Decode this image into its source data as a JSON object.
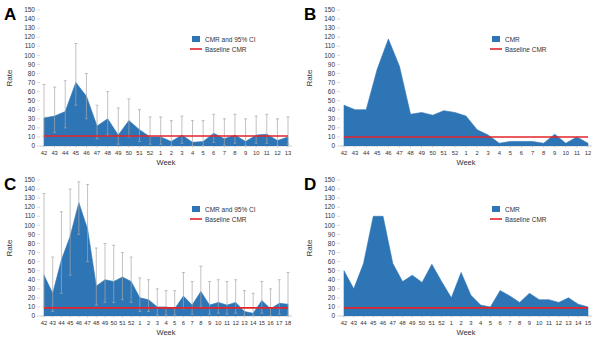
{
  "chart_data": [
    {
      "type": "area",
      "title": "A",
      "x_label": "Week",
      "y_label": "Rate",
      "categories": [
        "42",
        "43",
        "44",
        "45",
        "46",
        "47",
        "48",
        "49",
        "50",
        "51",
        "52",
        "1",
        "2",
        "3",
        "4",
        "5",
        "6",
        "7",
        "8",
        "9",
        "10",
        "11",
        "12",
        "13"
      ],
      "series": [
        {
          "name": "CMR and 95% CI",
          "color": "#2e75b6",
          "type": "area",
          "values": [
            31,
            33,
            38,
            70,
            55,
            22,
            30,
            12,
            28,
            18,
            10,
            10,
            5,
            12,
            4,
            5,
            14,
            8,
            12,
            5,
            12,
            13,
            6,
            10
          ],
          "ci_lower": [
            10,
            15,
            20,
            45,
            30,
            8,
            12,
            2,
            10,
            5,
            2,
            2,
            0,
            3,
            0,
            0,
            4,
            1,
            3,
            0,
            3,
            3,
            0,
            2
          ],
          "ci_upper": [
            68,
            65,
            72,
            113,
            80,
            45,
            60,
            42,
            52,
            40,
            32,
            32,
            28,
            33,
            28,
            28,
            35,
            30,
            35,
            30,
            33,
            35,
            30,
            32
          ]
        },
        {
          "name": "Baseline CMR",
          "color": "#e3242b",
          "type": "line",
          "values": [
            11,
            11,
            11,
            11,
            11,
            11,
            11,
            11,
            11,
            11,
            11,
            11,
            11,
            11,
            11,
            11,
            11,
            11,
            11,
            11,
            11,
            11,
            11,
            11
          ]
        }
      ],
      "ylim": [
        0,
        150
      ],
      "yticks": [
        0,
        10,
        20,
        30,
        40,
        50,
        60,
        70,
        80,
        90,
        100,
        110,
        120,
        130,
        140,
        150
      ],
      "grid": false,
      "legend": "top-right"
    },
    {
      "type": "area",
      "title": "B",
      "x_label": "Week",
      "y_label": "Rate",
      "categories": [
        "42",
        "43",
        "44",
        "45",
        "46",
        "47",
        "48",
        "49",
        "50",
        "51",
        "52",
        "1",
        "2",
        "3",
        "4",
        "5",
        "6",
        "7",
        "8",
        "9",
        "10",
        "11",
        "12"
      ],
      "series": [
        {
          "name": "CMR",
          "color": "#2e75b6",
          "type": "area",
          "values": [
            45,
            40,
            40,
            85,
            118,
            88,
            35,
            37,
            34,
            39,
            37,
            33,
            18,
            12,
            3,
            5,
            5,
            5,
            3,
            13,
            3,
            10,
            3
          ]
        },
        {
          "name": "Baseline CMR",
          "color": "#e3242b",
          "type": "line",
          "values": [
            10,
            10,
            10,
            10,
            10,
            10,
            10,
            10,
            10,
            10,
            10,
            10,
            10,
            10,
            10,
            10,
            10,
            10,
            10,
            10,
            10,
            10,
            10
          ]
        }
      ],
      "ylim": [
        0,
        150
      ],
      "yticks": [
        0,
        10,
        20,
        30,
        40,
        50,
        60,
        70,
        80,
        90,
        100,
        110,
        120,
        130,
        140,
        150
      ],
      "grid": false,
      "legend": "top-right"
    },
    {
      "type": "area",
      "title": "C",
      "x_label": "Week",
      "y_label": "Rate",
      "categories": [
        "42",
        "43",
        "44",
        "45",
        "46",
        "47",
        "48",
        "49",
        "50",
        "51",
        "52",
        "1",
        "2",
        "3",
        "4",
        "5",
        "6",
        "7",
        "8",
        "9",
        "10",
        "11",
        "12",
        "13",
        "14",
        "15",
        "16",
        "17",
        "18"
      ],
      "series": [
        {
          "name": "CMR and 95% CI",
          "color": "#2e75b6",
          "type": "area",
          "values": [
            45,
            25,
            62,
            88,
            125,
            96,
            33,
            40,
            38,
            43,
            38,
            20,
            18,
            10,
            10,
            8,
            22,
            12,
            27,
            12,
            15,
            12,
            15,
            5,
            3,
            17,
            8,
            14,
            13
          ],
          "ci_lower": [
            10,
            5,
            25,
            45,
            90,
            60,
            12,
            15,
            15,
            18,
            15,
            5,
            5,
            1,
            1,
            1,
            8,
            2,
            10,
            2,
            3,
            2,
            3,
            0,
            0,
            3,
            0,
            2,
            1
          ],
          "ci_upper": [
            135,
            65,
            115,
            140,
            148,
            145,
            75,
            80,
            78,
            70,
            65,
            42,
            40,
            30,
            28,
            28,
            48,
            38,
            55,
            38,
            40,
            38,
            40,
            28,
            25,
            38,
            30,
            40,
            48
          ]
        },
        {
          "name": "Baseline CMR",
          "color": "#e3242b",
          "type": "line",
          "values": [
            9,
            9,
            9,
            9,
            9,
            9,
            9,
            9,
            9,
            9,
            9,
            9,
            9,
            9,
            9,
            9,
            9,
            9,
            9,
            9,
            9,
            9,
            9,
            9,
            9,
            9,
            9,
            9,
            9
          ]
        }
      ],
      "ylim": [
        0,
        150
      ],
      "yticks": [
        0,
        10,
        20,
        30,
        40,
        50,
        60,
        70,
        80,
        90,
        100,
        110,
        120,
        130,
        140,
        150
      ],
      "grid": false,
      "legend": "top-right"
    },
    {
      "type": "area",
      "title": "D",
      "x_label": "Week",
      "y_label": "Rate",
      "categories": [
        "42",
        "43",
        "44",
        "45",
        "46",
        "47",
        "48",
        "49",
        "50",
        "51",
        "52",
        "1",
        "2",
        "3",
        "4",
        "5",
        "6",
        "7",
        "8",
        "9",
        "10",
        "11",
        "12",
        "13",
        "14",
        "15"
      ],
      "series": [
        {
          "name": "CMR",
          "color": "#2e75b6",
          "type": "area",
          "values": [
            50,
            30,
            58,
            110,
            110,
            58,
            38,
            45,
            37,
            57,
            38,
            20,
            48,
            23,
            12,
            10,
            28,
            22,
            15,
            25,
            18,
            18,
            15,
            20,
            13,
            10
          ]
        },
        {
          "name": "Baseline CMR",
          "color": "#e3242b",
          "type": "line",
          "values": [
            9,
            9,
            9,
            9,
            9,
            9,
            9,
            9,
            9,
            9,
            9,
            9,
            9,
            9,
            9,
            9,
            9,
            9,
            9,
            9,
            9,
            9,
            9,
            9,
            9,
            9
          ]
        }
      ],
      "ylim": [
        0,
        150
      ],
      "yticks": [
        0,
        10,
        20,
        30,
        40,
        50,
        60,
        70,
        80,
        90,
        100,
        110,
        120,
        130,
        140,
        150
      ],
      "grid": false,
      "legend": "top-right"
    }
  ]
}
